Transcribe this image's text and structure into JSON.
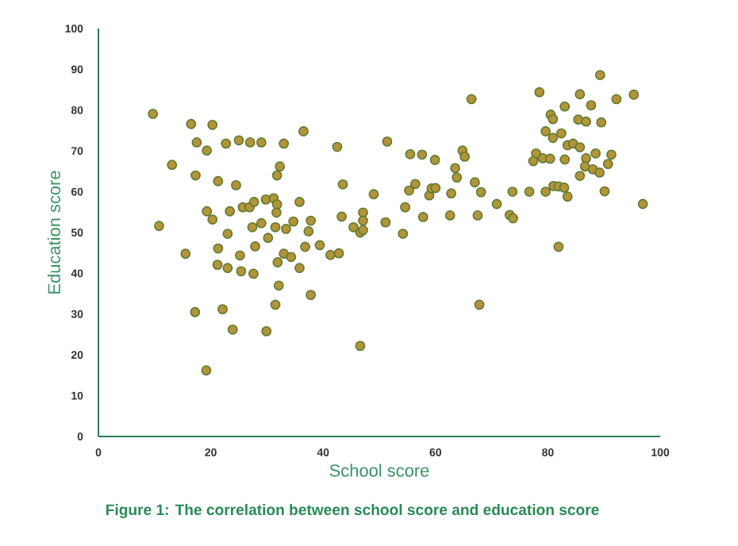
{
  "chart_data": {
    "type": "scatter",
    "xlabel": "School score",
    "ylabel": "Education score",
    "annotations": [
      "Figure 1: The correlation between school score and education score"
    ],
    "xlim": [
      0,
      100
    ],
    "ylim": [
      0,
      100
    ],
    "xticks": [
      0,
      20,
      40,
      60,
      80,
      100
    ],
    "yticks": [
      0,
      10,
      20,
      30,
      40,
      50,
      60,
      70,
      80,
      90,
      100
    ],
    "marker": "circle",
    "color": "#b3943a",
    "x": [
      9.7,
      13.1,
      10.8,
      16.5,
      20.3,
      17.5,
      19.3,
      22.7,
      25.0,
      27.0,
      29.0,
      33.0,
      17.3,
      21.3,
      24.5,
      19.3,
      20.3,
      23.4,
      25.7,
      26.9,
      27.7,
      29.8,
      31.2,
      31.8,
      31.7,
      32.3,
      31.8,
      23.0,
      27.4,
      29.0,
      31.5,
      30.2,
      27.9,
      21.3,
      15.5,
      25.2,
      21.2,
      23.0,
      25.4,
      27.6,
      31.9,
      33.0,
      32.1,
      31.5,
      17.2,
      22.1,
      23.9,
      29.9,
      19.2,
      33.4,
      66.4,
      36.5,
      42.5,
      51.4,
      55.5,
      57.6,
      59.9,
      64.8,
      65.2,
      63.5,
      63.8,
      67.0,
      68.1,
      70.9,
      73.2,
      73.8,
      35.8,
      34.7,
      37.8,
      37.4,
      36.8,
      34.3,
      35.8,
      37.8,
      39.4,
      41.3,
      42.8,
      43.5,
      43.3,
      49.0,
      45.4,
      47.1,
      47.1,
      46.6,
      47.1,
      51.1,
      54.2,
      54.6,
      55.3,
      56.4,
      57.8,
      58.9,
      59.3,
      60.0,
      62.8,
      62.6,
      67.5,
      67.8,
      46.6,
      89.3,
      78.5,
      85.7,
      92.2,
      95.3,
      87.7,
      83.0,
      80.5,
      80.9,
      85.4,
      86.8,
      89.5,
      79.6,
      80.9,
      82.4,
      83.5,
      84.5,
      85.7,
      77.9,
      77.4,
      79.1,
      80.4,
      83.0,
      86.8,
      88.5,
      91.3,
      90.7,
      86.6,
      88.0,
      89.2,
      85.7,
      73.7,
      76.7,
      79.6,
      81.0,
      81.9,
      82.9,
      83.5,
      90.1,
      96.9,
      81.9
    ],
    "values": [
      79.1,
      66.6,
      51.6,
      76.6,
      76.4,
      72.1,
      70.1,
      71.8,
      72.6,
      72.1,
      72.1,
      71.8,
      64.0,
      62.6,
      61.6,
      55.2,
      53.2,
      55.2,
      56.2,
      56.2,
      57.5,
      58.1,
      58.4,
      56.9,
      54.9,
      66.2,
      64.0,
      49.7,
      51.3,
      52.3,
      51.3,
      48.7,
      46.6,
      46.1,
      44.8,
      44.4,
      42.1,
      41.3,
      40.5,
      39.9,
      42.7,
      44.8,
      37.0,
      32.3,
      30.5,
      31.2,
      26.2,
      25.8,
      16.2,
      50.9,
      82.7,
      74.8,
      71.0,
      72.3,
      69.2,
      69.1,
      67.8,
      70.1,
      68.6,
      65.8,
      63.5,
      62.3,
      59.9,
      57.0,
      54.3,
      53.5,
      57.5,
      52.7,
      52.9,
      50.3,
      46.5,
      44.0,
      41.3,
      34.7,
      46.9,
      44.5,
      44.9,
      61.8,
      53.9,
      59.4,
      51.3,
      54.9,
      52.9,
      50.0,
      50.6,
      52.5,
      49.7,
      56.2,
      60.3,
      61.9,
      53.8,
      59.1,
      60.8,
      60.9,
      59.6,
      54.2,
      54.2,
      32.3,
      22.2,
      88.6,
      84.4,
      83.9,
      82.7,
      83.8,
      81.2,
      80.9,
      78.9,
      77.8,
      77.7,
      77.2,
      77.0,
      74.8,
      73.2,
      74.3,
      71.4,
      71.8,
      70.9,
      69.4,
      67.5,
      68.2,
      68.1,
      67.9,
      68.2,
      69.4,
      69.1,
      66.8,
      66.2,
      65.5,
      64.7,
      63.9,
      60.0,
      60.0,
      60.0,
      61.4,
      61.3,
      61.0,
      58.8,
      60.1,
      57.0,
      46.5
    ]
  }
}
